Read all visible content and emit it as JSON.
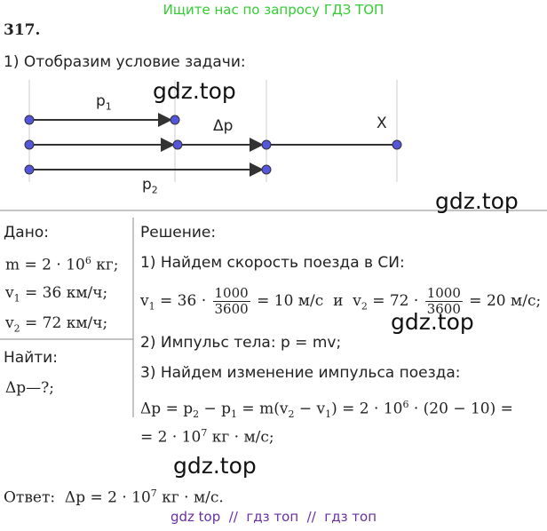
{
  "banner": "Ищите нас по запросу ГДЗ ТОП",
  "problem_number": "317.",
  "step1": "1) Отобразим условие задачи:",
  "diagram": {
    "labels": [
      [
        {
          "text": "p"
        },
        {
          "sub": "1"
        }
      ],
      [
        {
          "text": "Δp"
        }
      ],
      [
        {
          "text": "X"
        }
      ],
      [
        {
          "text": "p"
        },
        {
          "sub": "2"
        }
      ]
    ]
  },
  "watermarks": [
    "gdz.top",
    "gdz.top",
    "gdz.top",
    "gdz.top"
  ],
  "given": {
    "title": "Дано:",
    "lines": [
      [
        {
          "text": "m = 2 · 10"
        },
        {
          "sup": "6"
        },
        {
          "text": " кг;"
        }
      ],
      [
        {
          "text": "v"
        },
        {
          "sub": "1"
        },
        {
          "text": " = 36 км/ч;"
        }
      ],
      [
        {
          "text": "v"
        },
        {
          "sub": "2"
        },
        {
          "text": " = 72 км/ч;"
        }
      ]
    ]
  },
  "find": {
    "title": "Найти:",
    "lines": [
      [
        {
          "text": "Δp—?;"
        }
      ]
    ]
  },
  "solution": {
    "title": "Решение:",
    "lines": [
      [
        {
          "text": "1) Найдем скорость поезда в СИ:"
        }
      ],
      [
        {
          "text": "v"
        },
        {
          "sub": "1"
        },
        {
          "text": " = 36 · "
        },
        {
          "num": "1000",
          "den": "3600"
        },
        {
          "text": " = 10 м/с  и  v"
        },
        {
          "sub": "2"
        },
        {
          "text": " = 72 · "
        },
        {
          "num": "1000",
          "den": "3600"
        },
        {
          "text": " = 20 м/с;"
        }
      ],
      [
        {
          "text": "2) Импульс тела: p = mv;"
        }
      ],
      [
        {
          "text": "3) Найдем изменение импульса поезда:"
        }
      ],
      [
        {
          "text": "Δp = p"
        },
        {
          "sub": "2"
        },
        {
          "text": " − p"
        },
        {
          "sub": "1"
        },
        {
          "text": " = m(v"
        },
        {
          "sub": "2"
        },
        {
          "text": " − v"
        },
        {
          "sub": "1"
        },
        {
          "text": ") = 2 · 10"
        },
        {
          "sup": "6"
        },
        {
          "text": " · (20 − 10) ="
        }
      ],
      [
        {
          "text": "= 2 · 10"
        },
        {
          "sup": "7"
        },
        {
          "text": " кг · м/с;"
        }
      ]
    ]
  },
  "answer": [
    {
      "text": "Ответ:  Δp = 2 · 10"
    },
    {
      "sup": "7"
    },
    {
      "text": " кг · м/с."
    }
  ],
  "footer": "gdz top  //  гдз топ  //  гдз топ"
}
